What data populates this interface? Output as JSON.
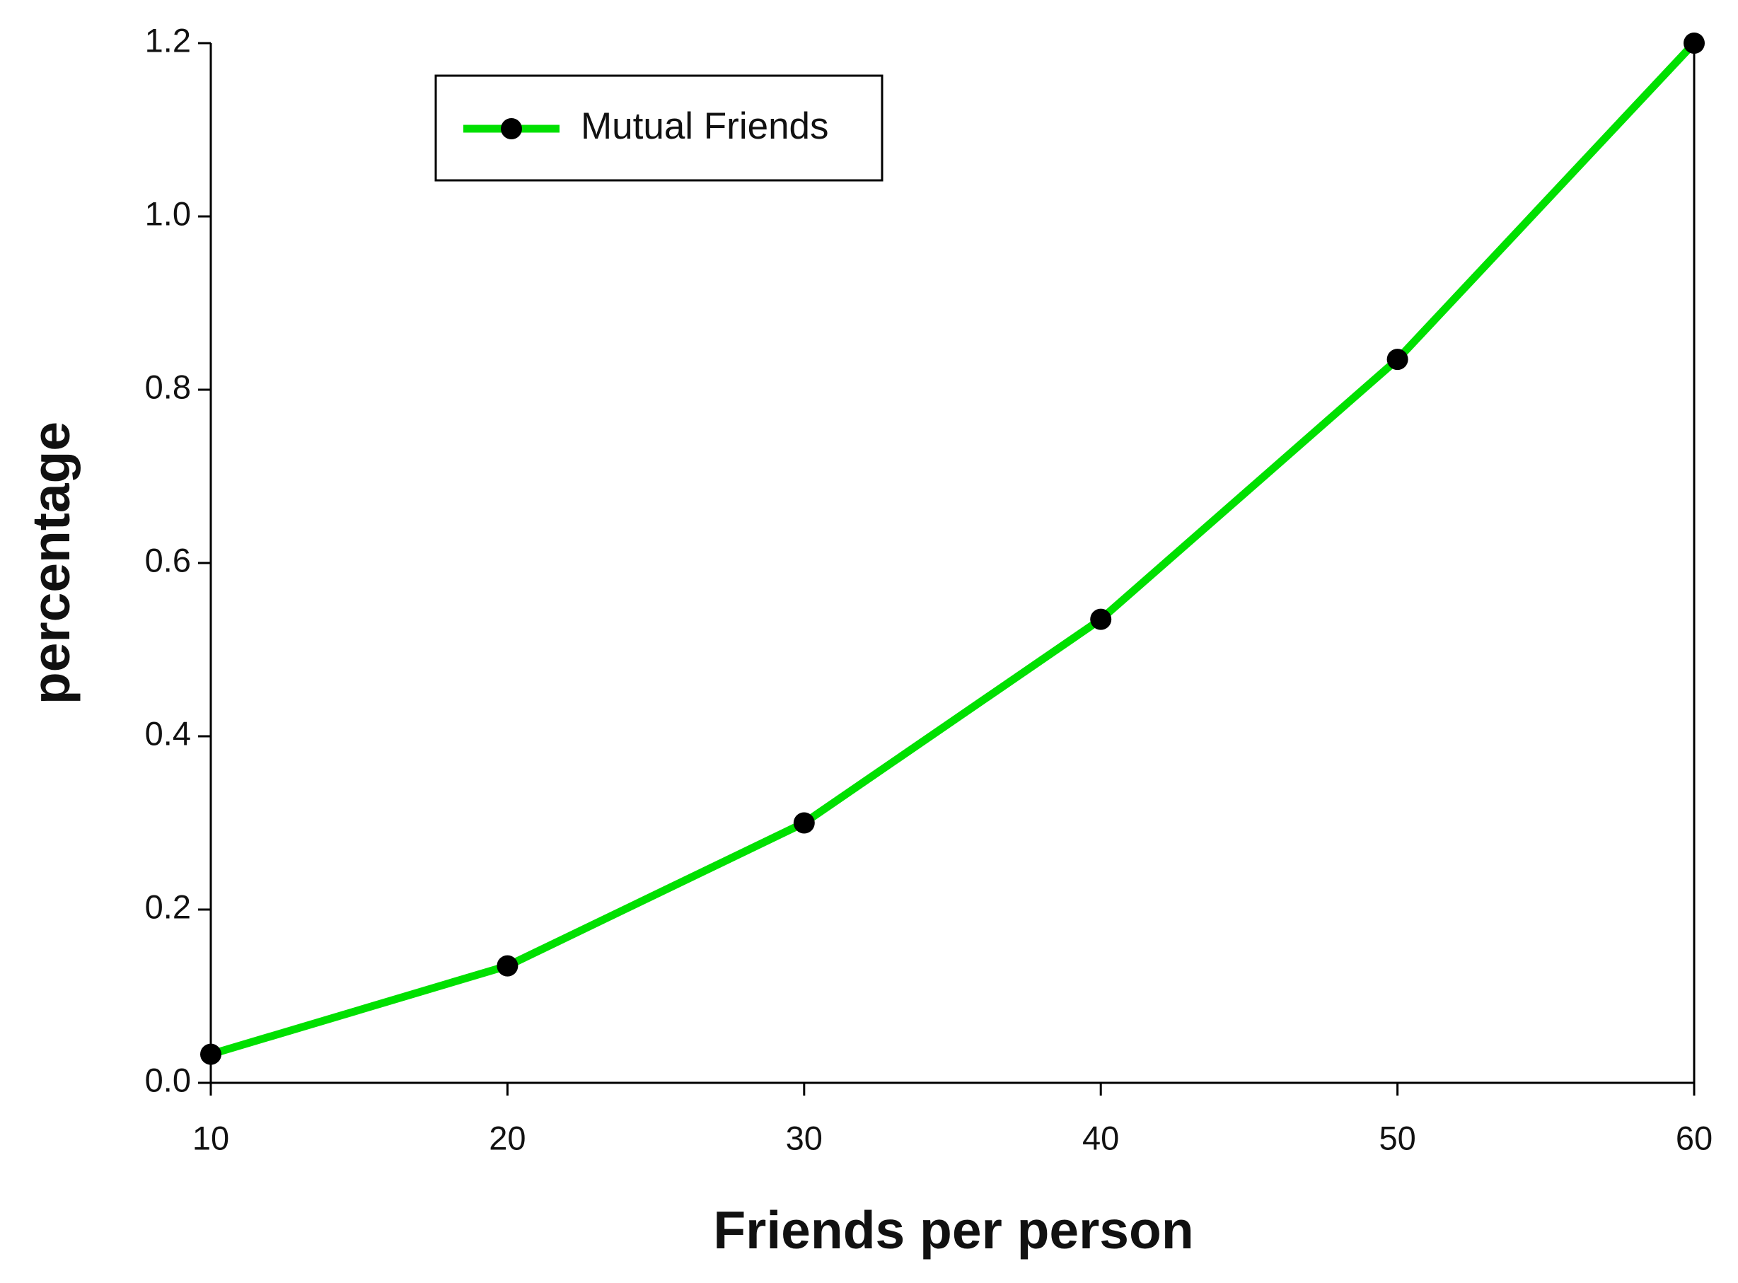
{
  "chart_data": {
    "type": "line",
    "x": [
      10,
      20,
      30,
      40,
      50,
      60
    ],
    "series": [
      {
        "name": "Mutual Friends",
        "color": "#00e000",
        "marker_color": "#000000",
        "values": [
          0.033,
          0.135,
          0.3,
          0.535,
          0.835,
          1.2
        ]
      }
    ],
    "xlabel": "Friends per person",
    "ylabel": "percentage",
    "xlim": [
      10,
      60
    ],
    "ylim": [
      0,
      1.2
    ],
    "xticks": [
      10,
      20,
      30,
      40,
      50,
      60
    ],
    "yticks": [
      {
        "value": 0,
        "label": "0.0"
      },
      0.2,
      0.4,
      0.6,
      0.8,
      {
        "value": 1,
        "label": "1.0"
      },
      1.2
    ],
    "grid": false,
    "legend": "upper left"
  }
}
